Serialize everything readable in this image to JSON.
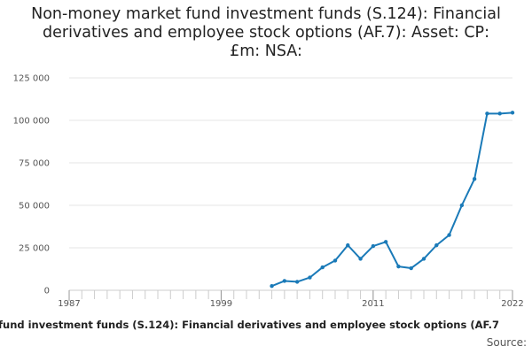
{
  "chart_data": {
    "type": "line",
    "title_lines": [
      "Non-money market fund investment funds (S.124): Financial",
      "derivatives and employee stock options (AF.7): Asset: CP:",
      "£m: NSA:"
    ],
    "xlabel": "fund investment funds (S.124): Financial derivatives and employee stock options (AF.7",
    "source_label": "Source:",
    "xlim": [
      1987,
      2022
    ],
    "ylim": [
      0,
      125000
    ],
    "x_ticks": [
      1987,
      1999,
      2011,
      2022
    ],
    "x_tick_labels": [
      "1987",
      "1999",
      "2011",
      "2022"
    ],
    "y_ticks": [
      0,
      25000,
      50000,
      75000,
      100000,
      125000
    ],
    "y_tick_labels": [
      "0",
      "25 000",
      "50 000",
      "75 000",
      "100 000",
      "125 000"
    ],
    "grid": "horizontal",
    "series_color": "#1a7ab8",
    "series": [
      {
        "x": [
          2003,
          2004,
          2005,
          2006,
          2007,
          2008,
          2009,
          2010,
          2011,
          2012,
          2013,
          2014,
          2015,
          2016,
          2017,
          2018,
          2019,
          2020,
          2021,
          2022
        ],
        "values": [
          2500,
          5500,
          5000,
          7500,
          13500,
          17500,
          26500,
          18500,
          26000,
          28500,
          14000,
          13000,
          18500,
          26500,
          32500,
          50000,
          65500,
          104000,
          104000,
          104500
        ]
      }
    ]
  }
}
